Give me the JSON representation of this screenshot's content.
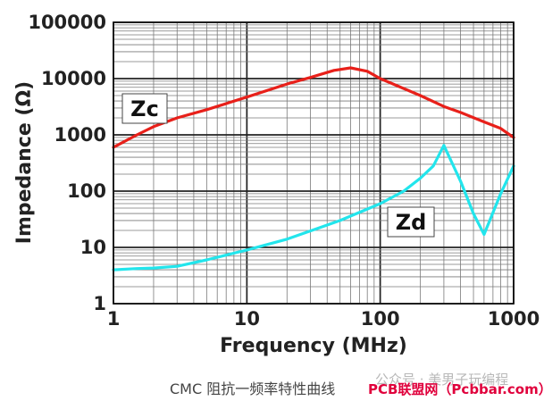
{
  "chart_data": {
    "type": "line",
    "xscale": "log",
    "yscale": "log",
    "xlim": [
      1,
      1000
    ],
    "ylim": [
      1,
      100000
    ],
    "xlabel": "Frequency (MHz)",
    "ylabel": "Impedance (Ω)",
    "x_ticks": [
      "1",
      "10",
      "100",
      "1000"
    ],
    "y_ticks": [
      "1",
      "10",
      "100",
      "1000",
      "10000",
      "100000"
    ],
    "grid": true,
    "series": [
      {
        "name": "Zc",
        "color": "#e8201a",
        "x": [
          1,
          1.5,
          2,
          3,
          5,
          10,
          20,
          30,
          45,
          60,
          80,
          100,
          200,
          300,
          400,
          600,
          800,
          1000
        ],
        "y": [
          600,
          1000,
          1400,
          2000,
          2800,
          4700,
          8000,
          10500,
          14000,
          15500,
          13500,
          10000,
          5000,
          3200,
          2500,
          1700,
          1300,
          900
        ]
      },
      {
        "name": "Zd",
        "color": "#22e5ec",
        "x": [
          1,
          1.5,
          2,
          3,
          5,
          10,
          20,
          50,
          100,
          150,
          200,
          250,
          300,
          400,
          500,
          600,
          800,
          1000
        ],
        "y": [
          4,
          4.2,
          4.3,
          4.6,
          6,
          9,
          14,
          30,
          60,
          100,
          170,
          280,
          650,
          150,
          40,
          17,
          90,
          280
        ]
      }
    ]
  },
  "caption": "CMC 阻抗一频率特性曲线",
  "watermark_faint": "公众号 · 美男子玩编程",
  "watermark": "PCB联盟网（Pcbbar.com）"
}
